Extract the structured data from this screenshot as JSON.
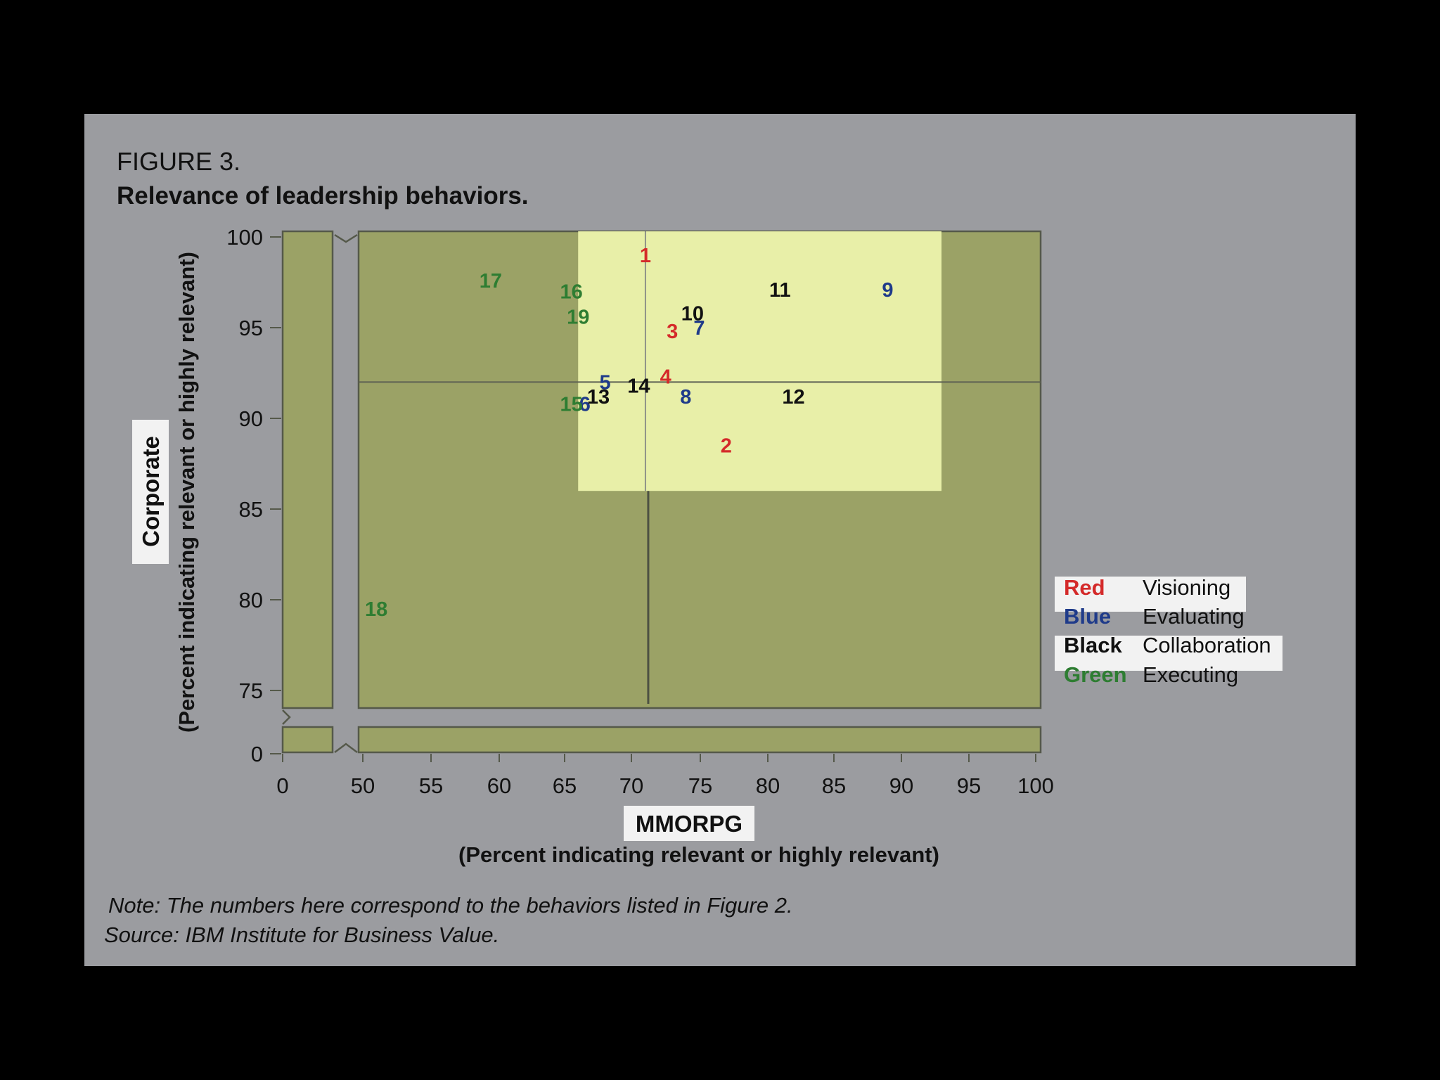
{
  "figure": {
    "label": "FIGURE 3.",
    "title": "Relevance of leadership behaviors.",
    "note": "Note: The numbers here correspond to the behaviors listed in Figure 2.",
    "source": "Source: IBM Institute for Business Value."
  },
  "chart_data": {
    "type": "scatter",
    "title": "Relevance of leadership behaviors.",
    "xlabel_box": "MMORPG",
    "xlabel": "(Percent indicating relevant or highly relevant)",
    "ylabel_box": "Corporate",
    "ylabel": "(Percent indicating relevant or highly relevant)",
    "xlim": [
      50,
      100
    ],
    "ylim": [
      75,
      100
    ],
    "x_axis_break": true,
    "y_axis_break": true,
    "x_ticks": [
      "0",
      "50",
      "55",
      "60",
      "65",
      "70",
      "75",
      "80",
      "85",
      "90",
      "95",
      "100"
    ],
    "y_ticks": [
      "0",
      "75",
      "80",
      "85",
      "90",
      "95",
      "100"
    ],
    "highlight_region": {
      "x": [
        66,
        93
      ],
      "y": [
        86,
        100
      ]
    },
    "reference_lines": {
      "x": 71,
      "y": 92
    },
    "colors": {
      "plot_fill": "#9ba266",
      "highlight": "#e8efa8",
      "panel": "#9b9ca0",
      "Visioning": "#d42a2a",
      "Evaluating": "#1f3b8a",
      "Collaboration": "#111111",
      "Executing": "#2e7d32"
    },
    "series": [
      {
        "name": "Visioning",
        "color_word": "Red",
        "color": "#d42a2a",
        "points": [
          {
            "label": "1",
            "x": 71,
            "y": 99
          },
          {
            "label": "2",
            "x": 77,
            "y": 88.5
          },
          {
            "label": "3",
            "x": 73,
            "y": 94.8
          },
          {
            "label": "4",
            "x": 72.5,
            "y": 92.3
          }
        ]
      },
      {
        "name": "Evaluating",
        "color_word": "Blue",
        "color": "#1f3b8a",
        "points": [
          {
            "label": "5",
            "x": 68,
            "y": 92
          },
          {
            "label": "6",
            "x": 66.5,
            "y": 90.8
          },
          {
            "label": "7",
            "x": 75,
            "y": 95
          },
          {
            "label": "8",
            "x": 74,
            "y": 91.2
          },
          {
            "label": "9",
            "x": 89,
            "y": 97.1
          }
        ]
      },
      {
        "name": "Collaboration",
        "color_word": "Black",
        "color": "#111111",
        "points": [
          {
            "label": "10",
            "x": 74.5,
            "y": 95.8
          },
          {
            "label": "11",
            "x": 81,
            "y": 97.1
          },
          {
            "label": "12",
            "x": 82,
            "y": 91.2
          },
          {
            "label": "13",
            "x": 67.5,
            "y": 91.2
          },
          {
            "label": "14",
            "x": 70.5,
            "y": 91.8
          }
        ]
      },
      {
        "name": "Executing",
        "color_word": "Green",
        "color": "#2e7d32",
        "points": [
          {
            "label": "15",
            "x": 65.5,
            "y": 90.8
          },
          {
            "label": "16",
            "x": 65.5,
            "y": 97
          },
          {
            "label": "17",
            "x": 59.5,
            "y": 97.6
          },
          {
            "label": "18",
            "x": 51,
            "y": 79.5
          },
          {
            "label": "19",
            "x": 66,
            "y": 95.6
          }
        ]
      }
    ],
    "legend": [
      {
        "color_word": "Red",
        "name": "Visioning"
      },
      {
        "color_word": "Blue",
        "name": "Evaluating"
      },
      {
        "color_word": "Black",
        "name": "Collaboration"
      },
      {
        "color_word": "Green",
        "name": "Executing"
      }
    ],
    "legend_position": "right"
  }
}
